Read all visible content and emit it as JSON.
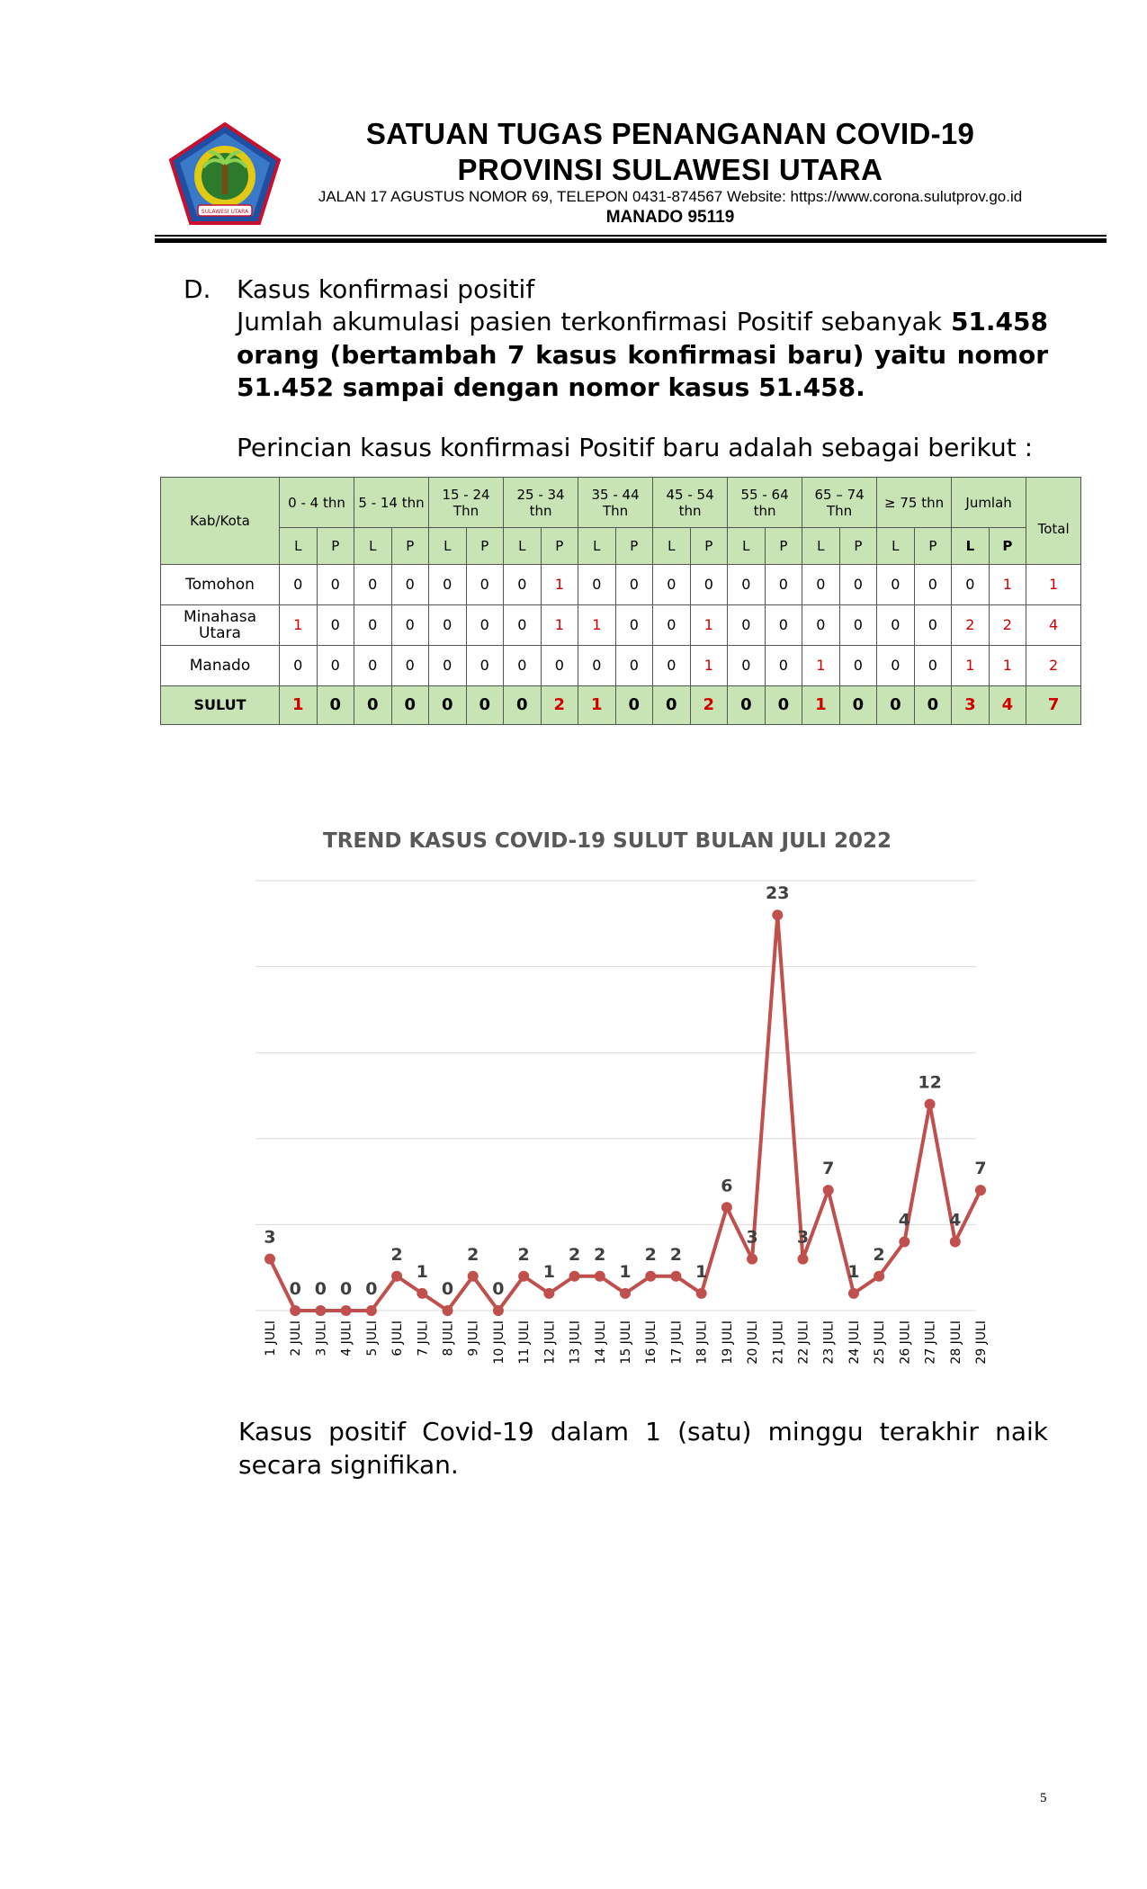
{
  "header": {
    "title_line1": "SATUAN TUGAS PENANGANAN COVID-19",
    "title_line2": "PROVINSI SULAWESI UTARA",
    "address": "JALAN 17 AGUSTUS NOMOR 69, TELEPON 0431-874567 Website: https://www.corona.sulutprov.go.id",
    "city": "MANADO  95119",
    "logo_icon": "provincial-emblem-icon",
    "logo_ribbon_text": "SULAWESI UTARA"
  },
  "section": {
    "letter": "D.",
    "title": "Kasus konfirmasi positif",
    "para_normal": "Jumlah akumulasi pasien terkonfirmasi Positif sebanyak ",
    "para_bold": "51.458 orang (bertambah 7 kasus konfirmasi baru) yaitu nomor 51.452 sampai dengan nomor kasus 51.458.",
    "lead": "Perincian kasus konfirmasi Positif baru adalah sebagai berikut :"
  },
  "table": {
    "kab_header": "Kab/Kota",
    "age_groups": [
      "0 - 4 thn",
      "5 - 14 thn",
      "15 - 24 Thn",
      "25 - 34 thn",
      "35 - 44 Thn",
      "45 - 54 thn",
      "55 - 64 thn",
      "65 – 74 Thn",
      "≥ 75 thn",
      "Jumlah"
    ],
    "total_header": "Total",
    "sub_headers": [
      "L",
      "P",
      "L",
      "P",
      "L",
      "P",
      "L",
      "P",
      "L",
      "P",
      "L",
      "P",
      "L",
      "P",
      "L",
      "P",
      "L",
      "P",
      "L",
      "P"
    ],
    "rows": [
      {
        "name": "Tomohon",
        "values": [
          "0",
          "0",
          "0",
          "0",
          "0",
          "0",
          "0",
          "1",
          "0",
          "0",
          "0",
          "0",
          "0",
          "0",
          "0",
          "0",
          "0",
          "0",
          "0",
          "1"
        ],
        "total": "1"
      },
      {
        "name": "Minahasa Utara",
        "values": [
          "1",
          "0",
          "0",
          "0",
          "0",
          "0",
          "0",
          "1",
          "1",
          "0",
          "0",
          "1",
          "0",
          "0",
          "0",
          "0",
          "0",
          "0",
          "2",
          "2"
        ],
        "total": "4"
      },
      {
        "name": "Manado",
        "values": [
          "0",
          "0",
          "0",
          "0",
          "0",
          "0",
          "0",
          "0",
          "0",
          "0",
          "0",
          "1",
          "0",
          "0",
          "1",
          "0",
          "0",
          "0",
          "1",
          "1"
        ],
        "total": "2"
      }
    ],
    "total_row": {
      "name": "SULUT",
      "values": [
        "1",
        "0",
        "0",
        "0",
        "0",
        "0",
        "0",
        "2",
        "1",
        "0",
        "0",
        "2",
        "0",
        "0",
        "1",
        "0",
        "0",
        "0",
        "3",
        "4"
      ],
      "total": "7"
    },
    "highlight_color": "#d00000",
    "header_bg": "#c9e4b4"
  },
  "chart_data": {
    "type": "line",
    "title": "TREND KASUS COVID-19 SULUT BULAN JULI 2022",
    "categories": [
      "1 JULI",
      "2 JULI",
      "3 JULI",
      "4 JULI",
      "5 JULI",
      "6 JULI",
      "7 JULI",
      "8 JULI",
      "9 JULI",
      "10 JULI",
      "11 JULI",
      "12 JULI",
      "13 JULI",
      "14 JULI",
      "15 JULI",
      "16 JULI",
      "17 JULI",
      "18 JULI",
      "19 JULI",
      "20 JULI",
      "21 JULI",
      "22 JULI",
      "23 JULI",
      "24 JULI",
      "25 JULI",
      "26 JULI",
      "27 JULI",
      "28 JULI",
      "29 JULI"
    ],
    "series": [
      {
        "values": [
          3,
          0,
          0,
          0,
          0,
          2,
          1,
          0,
          2,
          0,
          2,
          1,
          2,
          2,
          1,
          2,
          2,
          1,
          6,
          3,
          23,
          3,
          7,
          1,
          2,
          4,
          12,
          4,
          7
        ]
      }
    ],
    "ylim": [
      0,
      25
    ],
    "grid": true,
    "line_color": "#c0504d",
    "label_color": "#404040"
  },
  "closing": "Kasus positif Covid-19 dalam 1 (satu) minggu terakhir naik secara signifikan.",
  "page_number": "5"
}
